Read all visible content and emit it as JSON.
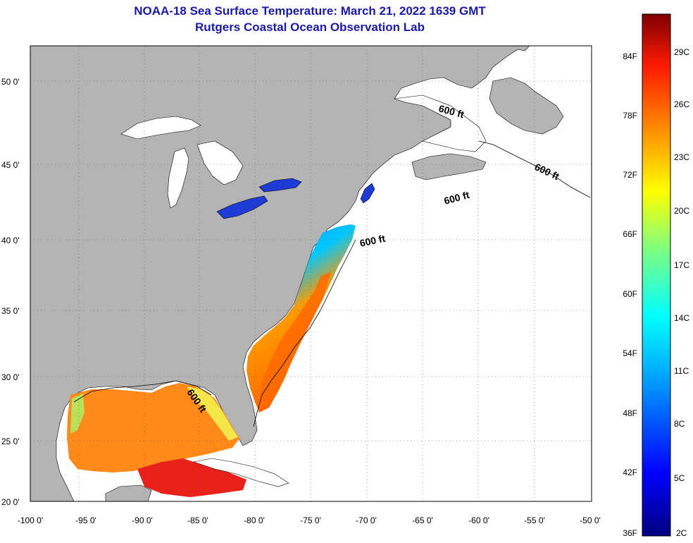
{
  "title": {
    "line1": "NOAA-18 Sea Surface Temperature:  March 21, 2022 1639 GMT",
    "line2": "Rutgers Coastal Ocean Observation Lab"
  },
  "axes": {
    "lat_labels": [
      "50 0'",
      "45 0'",
      "40 0'",
      "35 0'",
      "30 0'",
      "25 0'",
      "20 0'"
    ],
    "lon_labels": [
      "-100 0'",
      "-95 0'",
      "-90 0'",
      "-85 0'",
      "-80 0'",
      "-75 0'",
      "-70 0'",
      "-65 0'",
      "-60 0'",
      "-55 0'",
      "-50 0'"
    ]
  },
  "contour_label": "600 ft",
  "colorbar": {
    "fahrenheit": [
      "84F",
      "78F",
      "72F",
      "66F",
      "60F",
      "54F",
      "48F",
      "42F",
      "36F"
    ],
    "celsius": [
      "29C",
      "26C",
      "23C",
      "20C",
      "17C",
      "14C",
      "11C",
      "8C",
      "5C",
      "2C"
    ]
  },
  "colors": {
    "land": "#b4b4b4",
    "title": "#1a1aa6",
    "no_data": "#ffffff"
  }
}
